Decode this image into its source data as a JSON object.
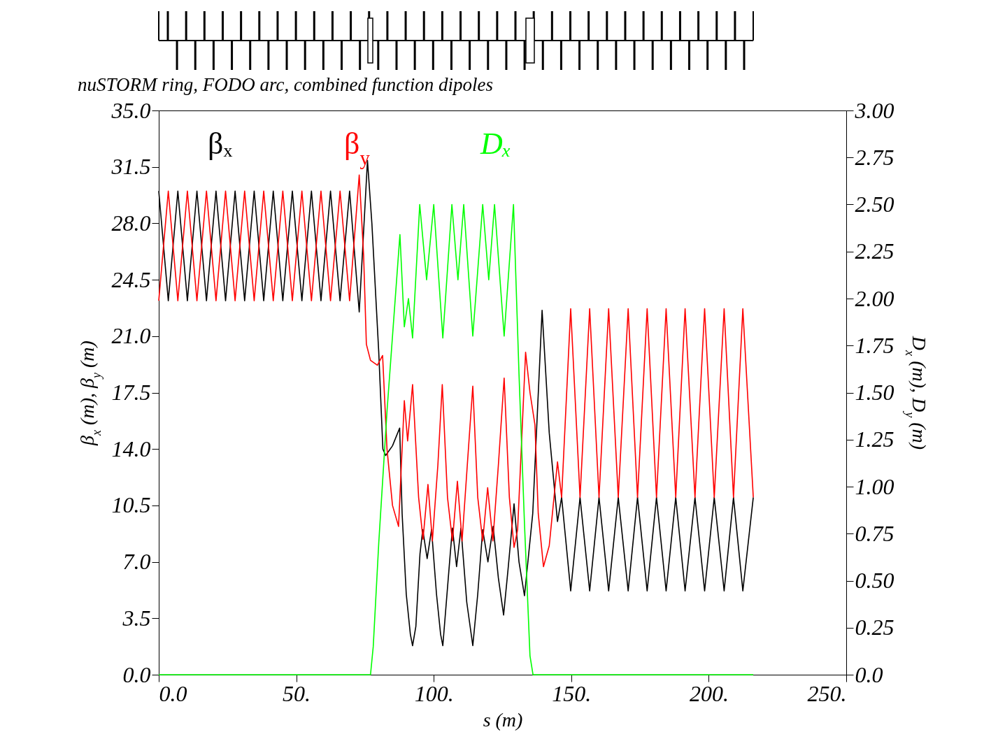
{
  "chart_data": {
    "type": "line",
    "title": "nuSTORM ring, FODO arc, combined function dipoles",
    "xlabel": "s (m)",
    "ylabel": "β$_{x}$ (m), β$_{y}$ (m)",
    "y2label": "D$_{x}$ (m), D$_{y}$ (m)",
    "xlim": [
      0,
      250
    ],
    "xticks": [
      {
        "value": 0,
        "label": "0.0"
      },
      {
        "value": 50,
        "label": "50."
      },
      {
        "value": 100,
        "label": "100."
      },
      {
        "value": 150,
        "label": "150."
      },
      {
        "value": 200,
        "label": "200."
      },
      {
        "value": 250,
        "label": "250."
      }
    ],
    "ylim": [
      0,
      35
    ],
    "yticks": [
      {
        "value": 0,
        "label": "0.0"
      },
      3.5,
      {
        "value": 7,
        "label": "7.0"
      },
      10.5,
      {
        "value": 14,
        "label": "14.0"
      },
      17.5,
      {
        "value": 21,
        "label": "21.0"
      },
      24.5,
      {
        "value": 28,
        "label": "28.0"
      },
      31.5,
      {
        "value": 35,
        "label": "35.0"
      }
    ],
    "y2lim": [
      0,
      3
    ],
    "y2ticks": [
      {
        "value": 0,
        "label": "0.0"
      },
      0.25,
      {
        "value": 0.5,
        "label": "0.50"
      },
      0.75,
      {
        "value": 1,
        "label": "1.00"
      },
      1.25,
      {
        "value": 1.5,
        "label": "1.50"
      },
      1.75,
      {
        "value": 2,
        "label": "2.00"
      },
      2.25,
      {
        "value": 2.5,
        "label": "2.50"
      },
      2.75,
      {
        "value": 3,
        "label": "3.00"
      }
    ],
    "grid": false,
    "legend": false,
    "marker": "none",
    "line_style": "solid",
    "series": [
      {
        "name": "βₓ",
        "color": "#000000",
        "x": [
          0,
          3.47,
          6.94,
          10.41,
          13.88,
          17.35,
          20.82,
          24.29,
          27.76,
          31.23,
          34.7,
          38.17,
          41.64,
          45.11,
          48.58,
          52.05,
          55.52,
          58.99,
          62.46,
          65.93,
          69.4,
          72.9,
          75.9,
          77.5,
          80,
          81.5,
          82.5,
          85,
          87.6,
          88.5,
          90,
          91.5,
          92.3,
          93.5,
          95,
          96,
          97.6,
          99.2,
          101,
          102.5,
          103.3,
          106,
          106.8,
          108.3,
          109.9,
          112,
          114.2,
          116,
          117.8,
          119.7,
          121.6,
          123.5,
          125.4,
          127,
          129.2,
          131,
          133,
          136,
          139.4,
          142,
          145,
          146.5,
          149.8,
          153.2,
          156.7,
          160.1,
          163.6,
          167.1,
          170.7,
          174.1,
          177.6,
          181,
          184.5,
          188,
          191.4,
          195,
          198.5,
          202,
          205.6,
          209,
          212.4,
          216.2
        ],
        "values": [
          30.0,
          23.2,
          30.0,
          23.2,
          30.0,
          23.2,
          30.0,
          23.2,
          30.0,
          23.2,
          30.0,
          23.2,
          30.0,
          23.2,
          30.0,
          23.2,
          30.0,
          23.2,
          30.0,
          23.2,
          30.0,
          22.5,
          31.9,
          28,
          20,
          14,
          13.6,
          14.2,
          15.3,
          10,
          5,
          2.5,
          1.8,
          3,
          7.5,
          9.0,
          7.2,
          9.0,
          5,
          2.5,
          1.8,
          7.5,
          9.1,
          6.7,
          9.1,
          4.5,
          1.8,
          5,
          9.0,
          7.0,
          9.2,
          6,
          3.7,
          6.5,
          10.6,
          7,
          4.9,
          10,
          22.6,
          15,
          9.5,
          11.0,
          5.2,
          11.0,
          5.2,
          11.0,
          5.2,
          11.0,
          5.2,
          11.0,
          5.2,
          11.0,
          5.2,
          11.0,
          5.2,
          11.0,
          5.2,
          11.0,
          5.2,
          11.0,
          5.2,
          11.0
        ]
      },
      {
        "name": "β$_{y}$",
        "color": "#ff0000",
        "x": [
          0,
          3.47,
          6.94,
          10.41,
          13.88,
          17.35,
          20.82,
          24.29,
          27.76,
          31.23,
          34.7,
          38.17,
          41.64,
          45.11,
          48.58,
          52.05,
          55.52,
          58.99,
          62.46,
          65.93,
          69.4,
          72.9,
          74.5,
          75.5,
          77,
          79.5,
          81.4,
          83,
          85,
          87.2,
          89.3,
          90.5,
          92.3,
          94.5,
          96.1,
          97.9,
          99.5,
          101.5,
          103.1,
          105,
          106.8,
          108.6,
          110.3,
          112.2,
          114.2,
          116,
          117.8,
          119.6,
          121.5,
          123.5,
          125.6,
          127.5,
          129.2,
          130.5,
          133.4,
          135,
          136.8,
          138,
          139.9,
          142,
          145,
          146.5,
          149.8,
          153.2,
          156.7,
          160.1,
          163.6,
          167.1,
          170.7,
          174.1,
          177.6,
          181,
          184.5,
          188,
          191.4,
          195,
          198.5,
          202,
          205.6,
          209,
          212.4,
          216.2
        ],
        "values": [
          23.2,
          30.0,
          23.2,
          30.0,
          23.2,
          30.0,
          23.2,
          30.0,
          23.2,
          30.0,
          23.2,
          30.0,
          23.2,
          30.0,
          23.2,
          30.0,
          23.2,
          30.0,
          23.2,
          30.0,
          23.2,
          31.0,
          26,
          20.5,
          19.5,
          19.2,
          19.8,
          14,
          10.5,
          9.2,
          17.0,
          14.5,
          18.0,
          11,
          8.4,
          11.8,
          8.3,
          13,
          18.0,
          11,
          8.3,
          12.0,
          8.3,
          13,
          17.9,
          11,
          8.3,
          11.6,
          8.3,
          13,
          18.4,
          11,
          7.9,
          9,
          20.0,
          17.5,
          15.5,
          10,
          6.7,
          8,
          13.2,
          11,
          22.7,
          11.0,
          22.7,
          11.0,
          22.7,
          11.0,
          22.7,
          11.0,
          22.7,
          11.0,
          22.7,
          11.0,
          22.7,
          11.0,
          22.7,
          11.0,
          22.7,
          11.0,
          22.7,
          11.0
        ]
      },
      {
        "name": "Dₓ",
        "color": "#00ff00",
        "axis": "y2",
        "x": [
          0,
          77,
          78,
          80,
          83,
          86,
          87.7,
          89.3,
          90.8,
          92.3,
          94.9,
          97.4,
          100,
          103.3,
          106.6,
          108.8,
          110.9,
          114.2,
          117.8,
          120,
          122.1,
          125.6,
          129,
          131,
          133,
          135,
          136.1,
          216.2
        ],
        "values": [
          0,
          0,
          0.15,
          0.7,
          1.4,
          2.0,
          2.34,
          1.85,
          2.0,
          1.79,
          2.5,
          2.1,
          2.5,
          1.79,
          2.5,
          2.1,
          2.5,
          1.8,
          2.5,
          2.1,
          2.5,
          1.8,
          2.5,
          1.6,
          0.8,
          0.1,
          0,
          0
        ]
      }
    ]
  }
}
